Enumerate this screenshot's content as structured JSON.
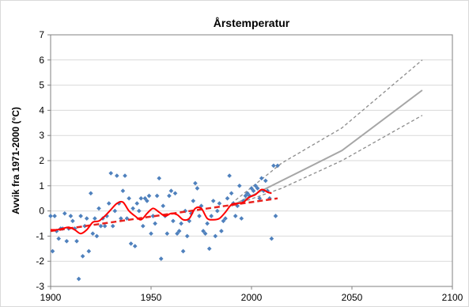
{
  "chart_data": {
    "type": "scatter",
    "title": "Årstemperatur",
    "ylabel": "Avvik fra 1971-2000 (°C)",
    "xlabel": "",
    "xlim": [
      1900,
      2100
    ],
    "ylim": [
      -3,
      7
    ],
    "x_ticks": [
      1900,
      1950,
      2000,
      2050,
      2100
    ],
    "y_ticks": [
      -3,
      -2,
      -1,
      0,
      1,
      2,
      3,
      4,
      5,
      6,
      7
    ],
    "grid": "horizontal",
    "legend": "none",
    "colors": {
      "points": "#4f81bd",
      "smoothed": "#ff0000",
      "trend": "#e8231f",
      "projection": "#a6a6a6",
      "projection_range": "#8c8c8c",
      "grid": "#d9d9d9"
    },
    "series": [
      {
        "kind": "points",
        "x": [
          1900,
          1901,
          1902,
          1903,
          1904,
          1905,
          1906,
          1907,
          1908,
          1909,
          1910,
          1911,
          1912,
          1913,
          1914,
          1915,
          1916,
          1917,
          1918,
          1919,
          1920,
          1921,
          1922,
          1923,
          1924,
          1925,
          1926,
          1927,
          1928,
          1929,
          1930,
          1931,
          1932,
          1933,
          1934,
          1935,
          1936,
          1937,
          1938,
          1939,
          1940,
          1941,
          1942,
          1943,
          1944,
          1945,
          1946,
          1947,
          1948,
          1949,
          1950,
          1951,
          1952,
          1953,
          1954,
          1955,
          1956,
          1957,
          1958,
          1959,
          1960,
          1961,
          1962,
          1963,
          1964,
          1965,
          1966,
          1967,
          1968,
          1969,
          1970,
          1971,
          1972,
          1973,
          1974,
          1975,
          1976,
          1977,
          1978,
          1979,
          1980,
          1981,
          1982,
          1983,
          1984,
          1985,
          1986,
          1987,
          1988,
          1989,
          1990,
          1991,
          1992,
          1993,
          1994,
          1995,
          1996,
          1997,
          1998,
          1999,
          2000,
          2001,
          2002,
          2003,
          2004,
          2005,
          2006,
          2007,
          2008,
          2009,
          2010,
          2011,
          2012,
          2013
        ],
        "y": [
          -0.2,
          -1.6,
          -0.2,
          -0.8,
          -1.1,
          -0.7,
          -0.7,
          -0.1,
          -1.2,
          -0.7,
          -0.2,
          -0.4,
          -0.7,
          -1.2,
          -2.7,
          -0.2,
          -1.8,
          -0.6,
          -0.3,
          -1.6,
          0.7,
          -0.9,
          -0.3,
          -1.0,
          0.1,
          -0.6,
          -0.3,
          -0.6,
          -0.2,
          0.3,
          1.5,
          -0.6,
          0.0,
          1.4,
          0.3,
          -0.3,
          0.8,
          1.4,
          -0.3,
          0.5,
          -1.3,
          0.1,
          -1.4,
          0.3,
          0.0,
          0.5,
          -0.6,
          0.5,
          0.4,
          0.6,
          -0.9,
          -0.2,
          -0.5,
          0.6,
          1.3,
          -1.9,
          0.2,
          -0.2,
          -0.9,
          0.6,
          0.8,
          -0.4,
          0.7,
          -0.9,
          -0.8,
          -0.5,
          -1.6,
          0.0,
          -1.0,
          -0.4,
          -0.1,
          0.4,
          1.1,
          0.9,
          -0.2,
          0.2,
          -0.8,
          -0.9,
          -0.5,
          -1.5,
          -0.2,
          0.4,
          -1.0,
          0.0,
          0.3,
          -0.8,
          -0.4,
          -0.3,
          0.5,
          1.4,
          0.7,
          0.3,
          -0.2,
          0.2,
          1.0,
          -0.3,
          0.4,
          0.6,
          0.7,
          0.6,
          0.9,
          0.8,
          1.0,
          0.9,
          0.5,
          1.3,
          0.8,
          1.2,
          0.8,
          0.5,
          -1.1,
          1.8,
          -0.2,
          1.8
        ]
      },
      {
        "kind": "smoothed",
        "x": [
          1900,
          1903,
          1906,
          1909,
          1912,
          1915,
          1918,
          1921,
          1924,
          1927,
          1930,
          1933,
          1936,
          1939,
          1942,
          1945,
          1948,
          1951,
          1954,
          1957,
          1960,
          1963,
          1966,
          1969,
          1972,
          1975,
          1978,
          1981,
          1984,
          1987,
          1990,
          1993,
          1996,
          1999,
          2002,
          2005,
          2008,
          2010
        ],
        "y": [
          -0.75,
          -0.75,
          -0.7,
          -0.65,
          -0.75,
          -0.9,
          -0.75,
          -0.45,
          -0.4,
          -0.2,
          0.05,
          0.3,
          0.35,
          0.0,
          -0.2,
          -0.35,
          -0.1,
          0.1,
          -0.05,
          -0.2,
          -0.1,
          -0.15,
          -0.35,
          -0.3,
          0.1,
          0.1,
          -0.3,
          -0.35,
          -0.3,
          -0.05,
          0.25,
          0.3,
          0.35,
          0.55,
          0.65,
          0.85,
          0.75,
          0.7
        ]
      },
      {
        "kind": "trend",
        "x": [
          1900,
          2013
        ],
        "y": [
          -0.8,
          0.5
        ]
      },
      {
        "kind": "projection",
        "x": [
          1990,
          2015,
          2045,
          2085
        ],
        "y": [
          0.2,
          1.2,
          2.4,
          4.8
        ]
      },
      {
        "kind": "projection_high",
        "x": [
          1990,
          2015,
          2045,
          2085
        ],
        "y": [
          0.3,
          1.9,
          3.3,
          6.0
        ]
      },
      {
        "kind": "projection_low",
        "x": [
          1990,
          2015,
          2045,
          2085
        ],
        "y": [
          0.2,
          0.9,
          2.0,
          3.8
        ]
      }
    ]
  }
}
